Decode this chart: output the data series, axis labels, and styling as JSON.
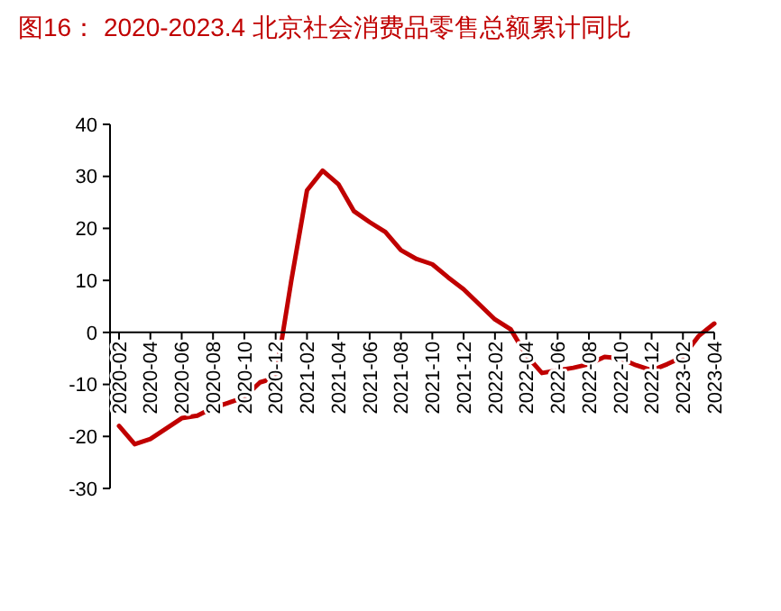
{
  "chart_data": {
    "type": "line",
    "title": "图16： 2020-2023.4 北京社会消费品零售总额累计同比",
    "categories": [
      "2020-02",
      null,
      "2020-04",
      null,
      "2020-06",
      null,
      "2020-08",
      null,
      "2020-10",
      null,
      "2020-12",
      null,
      "2021-02",
      null,
      "2021-04",
      null,
      "2021-06",
      null,
      "2021-08",
      null,
      "2021-10",
      null,
      "2021-12",
      null,
      "2022-02",
      null,
      "2022-04",
      null,
      "2022-06",
      null,
      "2022-08",
      null,
      "2022-10",
      null,
      "2022-12",
      null,
      "2023-02",
      null,
      "2023-04"
    ],
    "series": [
      {
        "color": "#c00000",
        "values": [
          -18,
          -21.5,
          -20.5,
          -18.5,
          -16.5,
          -16,
          -14.5,
          -13.5,
          -12.5,
          -9.6,
          -8.7,
          10,
          27.3,
          31.1,
          28.5,
          23.3,
          21.2,
          19.3,
          15.8,
          14.1,
          13.1,
          10.6,
          8.3,
          5.4,
          2.5,
          0.6,
          -4.4,
          -7.8,
          -7.3,
          -6.8,
          -6.1,
          -4.7,
          -5,
          -6.3,
          -7.3,
          -6.1,
          -4.7,
          -0.7,
          1.7
        ]
      }
    ],
    "ylim": [
      -30,
      40
    ],
    "yticks": [
      -30,
      -20,
      -10,
      0,
      10,
      20,
      30,
      40
    ],
    "grid": false,
    "marker": "none",
    "line_style": "solid"
  }
}
